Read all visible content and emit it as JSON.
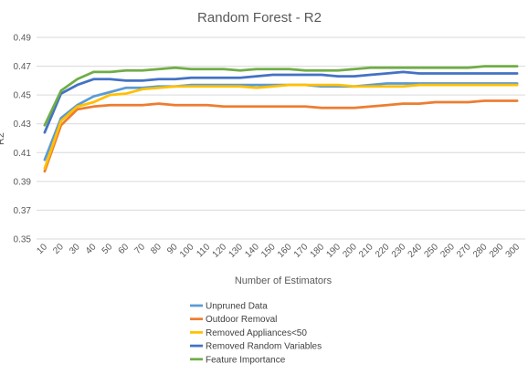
{
  "chart_data": {
    "type": "line",
    "title": "Random Forest - R2",
    "xlabel": "Number of Estimators",
    "ylabel": "R2",
    "ylim": [
      0.35,
      0.49
    ],
    "yticks": [
      "0.35",
      "0.37",
      "0.39",
      "0.41",
      "0.43",
      "0.45",
      "0.47",
      "0.49"
    ],
    "grid": true,
    "legend_position": "bottom",
    "categories": [
      "10",
      "20",
      "30",
      "40",
      "50",
      "60",
      "70",
      "80",
      "90",
      "100",
      "110",
      "120",
      "130",
      "140",
      "150",
      "160",
      "170",
      "180",
      "190",
      "200",
      "210",
      "220",
      "230",
      "240",
      "250",
      "260",
      "270",
      "280",
      "290",
      "300"
    ],
    "series": [
      {
        "name": "Unpruned Data",
        "color": "#5B9BD5",
        "values": [
          0.405,
          0.434,
          0.443,
          0.449,
          0.452,
          0.455,
          0.455,
          0.456,
          0.456,
          0.457,
          0.457,
          0.457,
          0.457,
          0.457,
          0.457,
          0.457,
          0.457,
          0.456,
          0.456,
          0.456,
          0.457,
          0.458,
          0.458,
          0.458,
          0.458,
          0.458,
          0.458,
          0.458,
          0.458,
          0.458
        ]
      },
      {
        "name": "Outdoor Removal",
        "color": "#ED7D31",
        "values": [
          0.397,
          0.429,
          0.44,
          0.442,
          0.443,
          0.443,
          0.443,
          0.444,
          0.443,
          0.443,
          0.443,
          0.442,
          0.442,
          0.442,
          0.442,
          0.442,
          0.442,
          0.441,
          0.441,
          0.441,
          0.442,
          0.443,
          0.444,
          0.444,
          0.445,
          0.445,
          0.445,
          0.446,
          0.446,
          0.446
        ]
      },
      {
        "name": "Removed Appliances<50",
        "color": "#FFC000",
        "values": [
          0.399,
          0.432,
          0.442,
          0.445,
          0.45,
          0.451,
          0.454,
          0.455,
          0.456,
          0.456,
          0.456,
          0.456,
          0.456,
          0.455,
          0.456,
          0.457,
          0.457,
          0.457,
          0.457,
          0.456,
          0.456,
          0.456,
          0.456,
          0.457,
          0.457,
          0.457,
          0.457,
          0.457,
          0.457,
          0.457
        ]
      },
      {
        "name": "Removed Random Variables",
        "color": "#4472C4",
        "values": [
          0.424,
          0.451,
          0.457,
          0.461,
          0.461,
          0.46,
          0.46,
          0.461,
          0.461,
          0.462,
          0.462,
          0.462,
          0.462,
          0.463,
          0.464,
          0.464,
          0.464,
          0.464,
          0.463,
          0.463,
          0.464,
          0.465,
          0.466,
          0.465,
          0.465,
          0.465,
          0.465,
          0.465,
          0.465,
          0.465
        ]
      },
      {
        "name": "Feature Importance",
        "color": "#70AD47",
        "values": [
          0.429,
          0.453,
          0.461,
          0.466,
          0.466,
          0.467,
          0.467,
          0.468,
          0.469,
          0.468,
          0.468,
          0.468,
          0.467,
          0.468,
          0.468,
          0.468,
          0.467,
          0.467,
          0.467,
          0.468,
          0.469,
          0.469,
          0.469,
          0.469,
          0.469,
          0.469,
          0.469,
          0.47,
          0.47,
          0.47
        ]
      }
    ]
  }
}
